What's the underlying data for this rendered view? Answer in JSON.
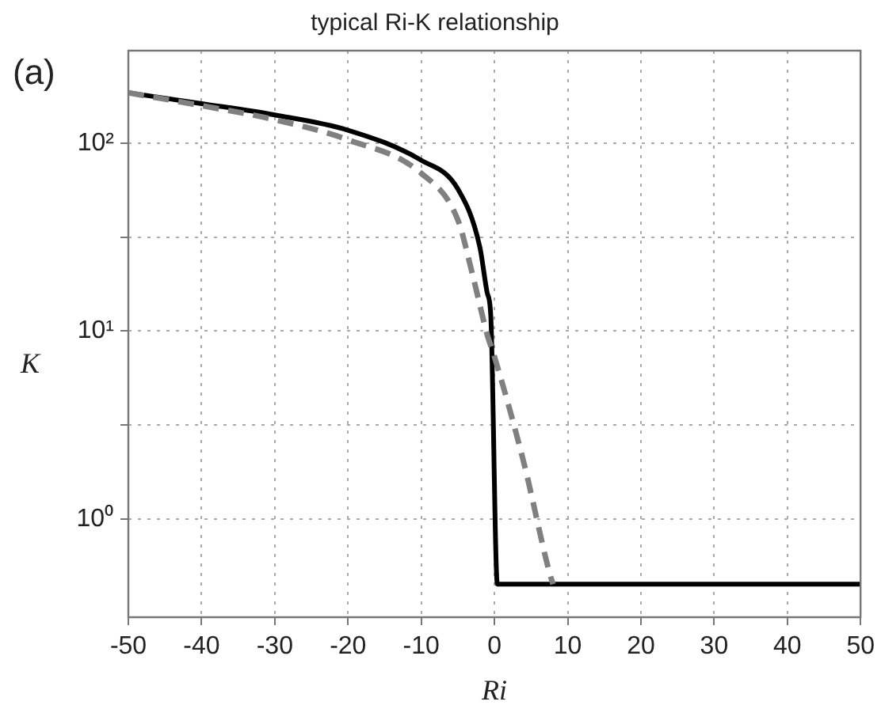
{
  "chart_data": {
    "type": "line",
    "title": "typical Ri-K relationship",
    "xlabel": "Ri",
    "ylabel": "K",
    "annotations": [
      "(a)"
    ],
    "log": "y",
    "grid": true,
    "legend": false,
    "marker": "none",
    "xlim": [
      -50,
      50
    ],
    "xticks": [
      -50,
      -40,
      -30,
      -20,
      -10,
      0,
      10,
      20,
      30,
      40,
      50
    ],
    "ylim": [
      0.3,
      310
    ],
    "yticks": [
      {
        "value": 1,
        "label": "10⁰"
      },
      {
        "value": 3.16,
        "label": null
      },
      {
        "value": 10,
        "label": "10¹"
      },
      {
        "value": 31.6,
        "label": null
      },
      {
        "value": 100,
        "label": "10²"
      }
    ],
    "series": [
      {
        "color": "#808080",
        "line_style": "dashed",
        "x": [
          -50,
          -40,
          -30,
          -20,
          -10,
          -5,
          -3,
          -1,
          0,
          4,
          7.5,
          8
        ],
        "values": [
          185,
          158,
          133,
          104,
          69,
          39,
          20,
          9.6,
          7.3,
          2,
          0.52,
          0.45
        ]
      },
      {
        "color": "#000000",
        "line_style": "solid",
        "x": [
          -50,
          -40,
          -30,
          -20,
          -10,
          -5,
          -2,
          -1,
          -0.5,
          0.4,
          50
        ],
        "values": [
          185,
          162,
          141,
          117,
          81,
          57,
          28,
          16,
          12,
          0.45,
          0.45
        ]
      }
    ]
  }
}
